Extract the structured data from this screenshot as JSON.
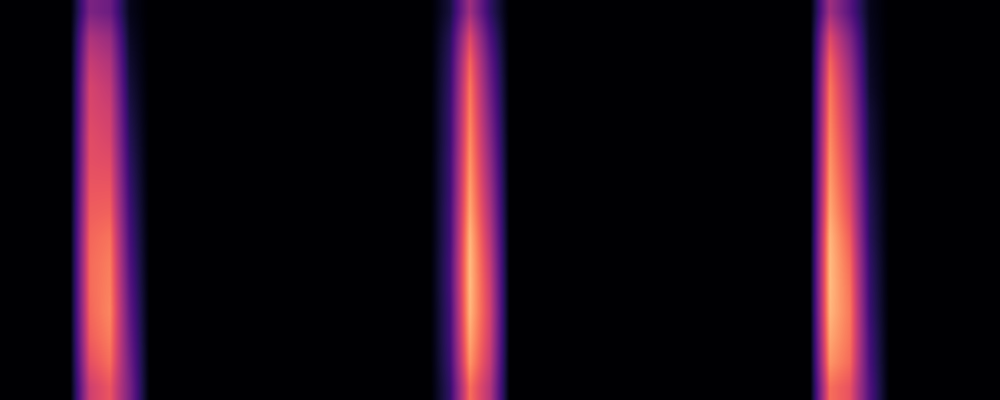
{
  "chart_data": {
    "type": "heatmap",
    "tick_labels": false,
    "color_range": [
      0,
      1
    ],
    "cells": [
      [
        0,
        0,
        0,
        0,
        0.36,
        0.32,
        0.05,
        0,
        0,
        0,
        0,
        0,
        0,
        0,
        0,
        0,
        0,
        0,
        0,
        0,
        0,
        0,
        0.11,
        0.45,
        0.18,
        0,
        0,
        0,
        0,
        0,
        0,
        0,
        0,
        0,
        0,
        0,
        0,
        0,
        0,
        0,
        0,
        0.45,
        0.27,
        0.05,
        0,
        0,
        0,
        0,
        0,
        0
      ],
      [
        0,
        0,
        0,
        0,
        0.48,
        0.43,
        0.07,
        0,
        0,
        0,
        0,
        0,
        0,
        0,
        0,
        0,
        0,
        0,
        0,
        0,
        0,
        0,
        0.15,
        0.6,
        0.25,
        0,
        0,
        0,
        0,
        0,
        0,
        0,
        0,
        0,
        0,
        0,
        0,
        0,
        0,
        0,
        0,
        0.6,
        0.37,
        0.06,
        0,
        0,
        0,
        0,
        0,
        0
      ],
      [
        0,
        0,
        0,
        0,
        0.54,
        0.49,
        0.09,
        0,
        0,
        0,
        0,
        0,
        0,
        0,
        0,
        0,
        0,
        0,
        0,
        0,
        0,
        0,
        0.17,
        0.68,
        0.3,
        0,
        0,
        0,
        0,
        0,
        0,
        0,
        0,
        0,
        0,
        0,
        0,
        0,
        0,
        0,
        0,
        0.68,
        0.43,
        0.07,
        0,
        0,
        0,
        0,
        0,
        0
      ],
      [
        0,
        0,
        0,
        0,
        0.58,
        0.53,
        0.11,
        0,
        0,
        0,
        0,
        0,
        0,
        0,
        0,
        0,
        0,
        0,
        0,
        0,
        0,
        0,
        0.18,
        0.72,
        0.33,
        0,
        0,
        0,
        0,
        0,
        0,
        0,
        0,
        0,
        0,
        0,
        0,
        0,
        0,
        0,
        0,
        0.72,
        0.47,
        0.08,
        0,
        0,
        0,
        0,
        0,
        0
      ],
      [
        0,
        0,
        0,
        0,
        0.59,
        0.56,
        0.13,
        0,
        0,
        0,
        0,
        0,
        0,
        0,
        0,
        0,
        0,
        0,
        0,
        0,
        0,
        0,
        0.19,
        0.74,
        0.36,
        0,
        0,
        0,
        0,
        0,
        0,
        0,
        0,
        0,
        0,
        0,
        0,
        0,
        0,
        0,
        0,
        0.74,
        0.5,
        0.1,
        0,
        0,
        0,
        0,
        0,
        0
      ],
      [
        0,
        0,
        0,
        0,
        0.61,
        0.58,
        0.15,
        0,
        0,
        0,
        0,
        0,
        0,
        0,
        0,
        0,
        0,
        0,
        0,
        0,
        0,
        0,
        0.19,
        0.76,
        0.39,
        0,
        0,
        0,
        0,
        0,
        0,
        0,
        0,
        0,
        0,
        0,
        0,
        0,
        0,
        0,
        0,
        0.76,
        0.53,
        0.11,
        0,
        0,
        0,
        0,
        0,
        0
      ],
      [
        0,
        0,
        0,
        0,
        0.62,
        0.61,
        0.17,
        0,
        0,
        0,
        0,
        0,
        0,
        0,
        0,
        0,
        0,
        0,
        0,
        0,
        0,
        0,
        0.2,
        0.78,
        0.42,
        0,
        0,
        0,
        0,
        0,
        0,
        0,
        0,
        0,
        0,
        0,
        0,
        0,
        0,
        0,
        0,
        0.78,
        0.56,
        0.12,
        0,
        0,
        0,
        0,
        0,
        0
      ],
      [
        0,
        0,
        0,
        0,
        0.64,
        0.64,
        0.19,
        0,
        0,
        0,
        0,
        0,
        0,
        0,
        0,
        0,
        0,
        0,
        0,
        0,
        0,
        0,
        0.2,
        0.8,
        0.45,
        0,
        0,
        0,
        0,
        0,
        0,
        0,
        0,
        0,
        0,
        0,
        0,
        0,
        0,
        0,
        0,
        0.8,
        0.59,
        0.14,
        0,
        0,
        0,
        0,
        0,
        0
      ],
      [
        0,
        0,
        0,
        0,
        0.66,
        0.67,
        0.21,
        0,
        0,
        0,
        0,
        0,
        0,
        0,
        0,
        0,
        0,
        0,
        0,
        0,
        0,
        0,
        0.21,
        0.82,
        0.48,
        0,
        0,
        0,
        0,
        0,
        0,
        0,
        0,
        0,
        0,
        0,
        0,
        0,
        0,
        0,
        0,
        0.82,
        0.62,
        0.15,
        0,
        0,
        0,
        0,
        0,
        0
      ],
      [
        0,
        0,
        0,
        0,
        0.68,
        0.71,
        0.23,
        0,
        0,
        0,
        0,
        0,
        0,
        0,
        0,
        0,
        0,
        0,
        0,
        0,
        0,
        0,
        0.21,
        0.85,
        0.51,
        0,
        0,
        0,
        0,
        0,
        0,
        0,
        0,
        0,
        0,
        0,
        0,
        0,
        0,
        0,
        0,
        0.85,
        0.66,
        0.16,
        0,
        0,
        0,
        0,
        0,
        0
      ],
      [
        0,
        0,
        0,
        0,
        0.69,
        0.73,
        0.25,
        0,
        0,
        0,
        0,
        0,
        0,
        0,
        0,
        0,
        0,
        0,
        0,
        0,
        0,
        0,
        0.22,
        0.86,
        0.54,
        0,
        0,
        0,
        0,
        0,
        0,
        0,
        0,
        0,
        0,
        0,
        0,
        0,
        0,
        0,
        0,
        0.86,
        0.69,
        0.18,
        0,
        0,
        0,
        0,
        0,
        0
      ],
      [
        0,
        0,
        0,
        0,
        0.69,
        0.74,
        0.27,
        0,
        0,
        0,
        0,
        0,
        0,
        0,
        0,
        0,
        0,
        0,
        0,
        0,
        0,
        0,
        0.22,
        0.86,
        0.56,
        0,
        0,
        0,
        0,
        0,
        0,
        0,
        0,
        0,
        0,
        0,
        0,
        0,
        0,
        0,
        0,
        0.86,
        0.71,
        0.19,
        0,
        0,
        0,
        0,
        0,
        0
      ],
      [
        0,
        0,
        0,
        0,
        0.68,
        0.75,
        0.29,
        0,
        0,
        0,
        0,
        0,
        0,
        0,
        0,
        0,
        0,
        0,
        0,
        0,
        0,
        0,
        0.21,
        0.85,
        0.57,
        0,
        0,
        0,
        0,
        0,
        0,
        0,
        0,
        0,
        0,
        0,
        0,
        0,
        0,
        0,
        0,
        0.85,
        0.72,
        0.2,
        0,
        0,
        0,
        0,
        0,
        0
      ],
      [
        0,
        0,
        0,
        0,
        0.66,
        0.73,
        0.31,
        0,
        0,
        0,
        0,
        0,
        0,
        0,
        0,
        0,
        0,
        0,
        0,
        0,
        0,
        0,
        0.21,
        0.82,
        0.56,
        0,
        0,
        0,
        0,
        0,
        0,
        0,
        0,
        0,
        0,
        0,
        0,
        0,
        0,
        0,
        0,
        0.82,
        0.71,
        0.22,
        0,
        0,
        0,
        0,
        0,
        0
      ],
      [
        0,
        0,
        0,
        0,
        0.62,
        0.7,
        0.33,
        0,
        0,
        0,
        0,
        0,
        0,
        0,
        0,
        0,
        0,
        0,
        0,
        0,
        0,
        0,
        0.2,
        0.78,
        0.54,
        0,
        0,
        0,
        0,
        0,
        0,
        0,
        0,
        0,
        0,
        0,
        0,
        0,
        0,
        0,
        0,
        0.78,
        0.69,
        0.23,
        0,
        0,
        0,
        0,
        0,
        0
      ],
      [
        0,
        0,
        0,
        0,
        0.56,
        0.64,
        0.35,
        0,
        0,
        0,
        0,
        0,
        0,
        0,
        0,
        0,
        0,
        0,
        0,
        0,
        0,
        0,
        0.18,
        0.7,
        0.5,
        0,
        0,
        0,
        0,
        0,
        0,
        0,
        0,
        0,
        0,
        0,
        0,
        0,
        0,
        0,
        0,
        0.7,
        0.63,
        0.25,
        0,
        0,
        0,
        0,
        0,
        0
      ]
    ]
  }
}
